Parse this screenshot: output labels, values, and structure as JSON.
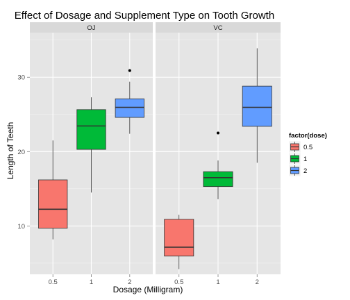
{
  "chart_data": {
    "type": "boxplot",
    "title": "Effect of Dosage and Supplement Type on Tooth Growth",
    "xlabel": "Dosage (Milligram)",
    "ylabel": "Length of Teeth",
    "ylim": [
      3.5,
      36
    ],
    "yticks": [
      10,
      20,
      30
    ],
    "categories": [
      "0.5",
      "1",
      "2"
    ],
    "grid": true,
    "legend": {
      "title": "factor(dose)",
      "position": "right",
      "entries": [
        {
          "label": "0.5",
          "color": "#F8766D"
        },
        {
          "label": "1",
          "color": "#00BA38"
        },
        {
          "label": "2",
          "color": "#619CFF"
        }
      ]
    },
    "panels": [
      {
        "name": "OJ",
        "boxes": [
          {
            "dose": "0.5",
            "lower_whisker": 8.2,
            "q1": 9.7,
            "median": 12.25,
            "q3": 16.2,
            "upper_whisker": 21.5,
            "outliers": []
          },
          {
            "dose": "1",
            "lower_whisker": 14.5,
            "q1": 20.3,
            "median": 23.45,
            "q3": 25.65,
            "upper_whisker": 27.3,
            "outliers": []
          },
          {
            "dose": "2",
            "lower_whisker": 22.4,
            "q1": 24.6,
            "median": 25.95,
            "q3": 27.1,
            "upper_whisker": 29.4,
            "outliers": [
              30.9
            ]
          }
        ]
      },
      {
        "name": "VC",
        "boxes": [
          {
            "dose": "0.5",
            "lower_whisker": 4.2,
            "q1": 5.95,
            "median": 7.15,
            "q3": 10.9,
            "upper_whisker": 11.5,
            "outliers": []
          },
          {
            "dose": "1",
            "lower_whisker": 13.6,
            "q1": 15.3,
            "median": 16.5,
            "q3": 17.3,
            "upper_whisker": 18.8,
            "outliers": [
              22.5
            ]
          },
          {
            "dose": "2",
            "lower_whisker": 18.5,
            "q1": 23.4,
            "median": 25.95,
            "q3": 28.8,
            "upper_whisker": 33.9,
            "outliers": []
          }
        ]
      }
    ]
  }
}
